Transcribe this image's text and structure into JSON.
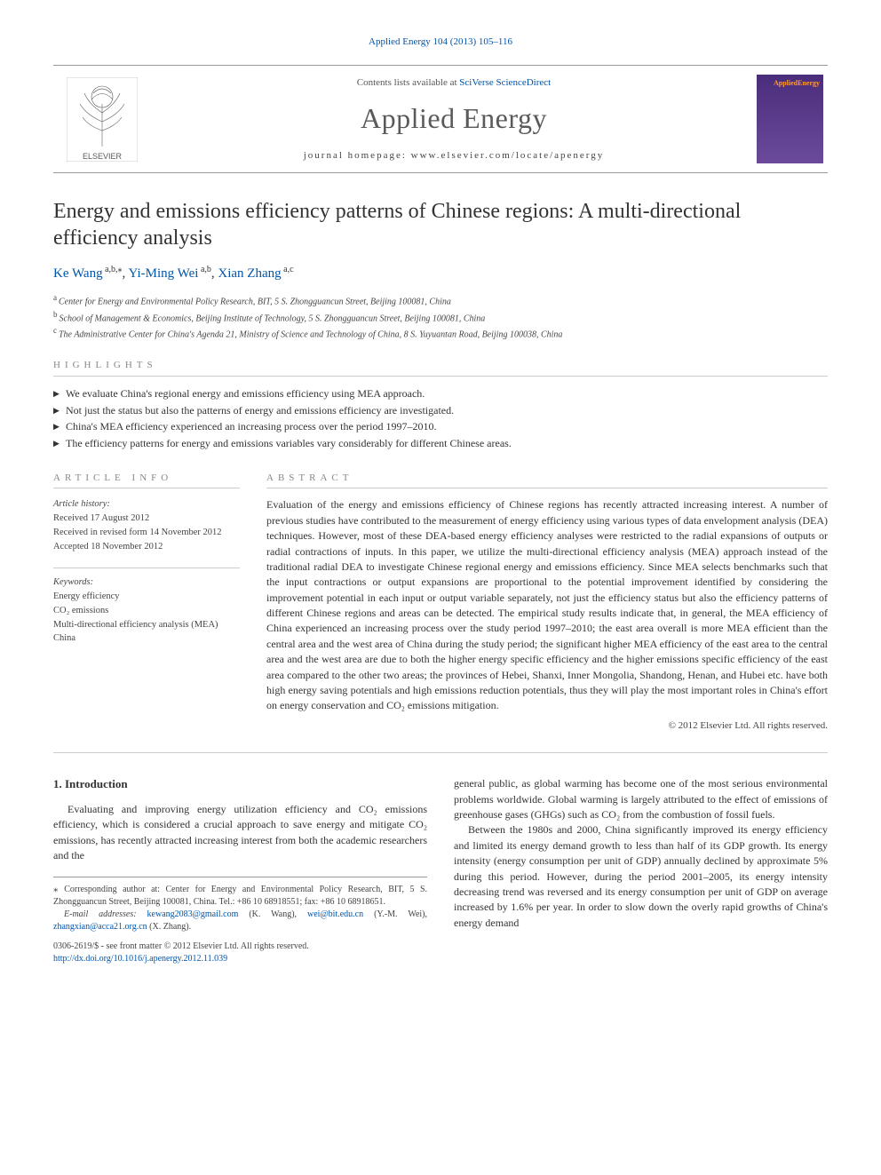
{
  "citation": {
    "journal_link": "Applied Energy 104 (2013) 105–116"
  },
  "masthead": {
    "contents_prefix": "Contents lists available at ",
    "contents_link": "SciVerse ScienceDirect",
    "journal": "Applied Energy",
    "homepage_label": "journal homepage: ",
    "homepage_url": "www.elsevier.com/locate/apenergy",
    "publisher_word": "ELSEVIER",
    "cover_title": "AppliedEnergy"
  },
  "title": "Energy and emissions efficiency patterns of Chinese regions: A multi-directional efficiency analysis",
  "authors": [
    {
      "name": "Ke Wang",
      "aff": "a,b,",
      "corr": "*"
    },
    {
      "name": "Yi-Ming Wei",
      "aff": "a,b",
      "corr": ""
    },
    {
      "name": "Xian Zhang",
      "aff": "a,c",
      "corr": ""
    }
  ],
  "affiliations": [
    {
      "key": "a",
      "text": "Center for Energy and Environmental Policy Research, BIT, 5 S. Zhongguancun Street, Beijing 100081, China"
    },
    {
      "key": "b",
      "text": "School of Management & Economics, Beijing Institute of Technology, 5 S. Zhongguancun Street, Beijing 100081, China"
    },
    {
      "key": "c",
      "text": "The Administrative Center for China's Agenda 21, Ministry of Science and Technology of China, 8 S. Yuyuantan Road, Beijing 100038, China"
    }
  ],
  "highlights": {
    "label": "HIGHLIGHTS",
    "items": [
      "We evaluate China's regional energy and emissions efficiency using MEA approach.",
      "Not just the status but also the patterns of energy and emissions efficiency are investigated.",
      "China's MEA efficiency experienced an increasing process over the period 1997–2010.",
      "The efficiency patterns for energy and emissions variables vary considerably for different Chinese areas."
    ]
  },
  "article_info": {
    "label": "ARTICLE INFO",
    "history_hdr": "Article history:",
    "received": "Received 17 August 2012",
    "revised": "Received in revised form 14 November 2012",
    "accepted": "Accepted 18 November 2012",
    "keywords_hdr": "Keywords:",
    "keywords": [
      "Energy efficiency",
      "CO₂ emissions",
      "Multi-directional efficiency analysis (MEA)",
      "China"
    ]
  },
  "abstract": {
    "label": "ABSTRACT",
    "text": "Evaluation of the energy and emissions efficiency of Chinese regions has recently attracted increasing interest. A number of previous studies have contributed to the measurement of energy efficiency using various types of data envelopment analysis (DEA) techniques. However, most of these DEA-based energy efficiency analyses were restricted to the radial expansions of outputs or radial contractions of inputs. In this paper, we utilize the multi-directional efficiency analysis (MEA) approach instead of the traditional radial DEA to investigate Chinese regional energy and emissions efficiency. Since MEA selects benchmarks such that the input contractions or output expansions are proportional to the potential improvement identified by considering the improvement potential in each input or output variable separately, not just the efficiency status but also the efficiency patterns of different Chinese regions and areas can be detected. The empirical study results indicate that, in general, the MEA efficiency of China experienced an increasing process over the study period 1997–2010; the east area overall is more MEA efficient than the central area and the west area of China during the study period; the significant higher MEA efficiency of the east area to the central area and the west area are due to both the higher energy specific efficiency and the higher emissions specific efficiency of the east area compared to the other two areas; the provinces of Hebei, Shanxi, Inner Mongolia, Shandong, Henan, and Hubei etc. have both high energy saving potentials and high emissions reduction potentials, thus they will play the most important roles in China's effort on energy conservation and CO₂ emissions mitigation.",
    "copyright": "© 2012 Elsevier Ltd. All rights reserved."
  },
  "body": {
    "heading_num": "1.",
    "heading": "Introduction",
    "p1": "Evaluating and improving energy utilization efficiency and CO₂ emissions efficiency, which is considered a crucial approach to save energy and mitigate CO₂ emissions, has recently attracted increasing interest from both the academic researchers and the",
    "p2": "general public, as global warming has become one of the most serious environmental problems worldwide. Global warming is largely attributed to the effect of emissions of greenhouse gases (GHGs) such as CO₂ from the combustion of fossil fuels.",
    "p3": "Between the 1980s and 2000, China significantly improved its energy efficiency and limited its energy demand growth to less than half of its GDP growth. Its energy intensity (energy consumption per unit of GDP) annually declined by approximate 5% during this period. However, during the period 2001–2005, its energy intensity decreasing trend was reversed and its energy consumption per unit of GDP on average increased by 1.6% per year. In order to slow down the overly rapid growths of China's energy demand"
  },
  "footnotes": {
    "corr": "Corresponding author at: Center for Energy and Environmental Policy Research, BIT, 5 S. Zhongguancun Street, Beijing 100081, China. Tel.: +86 10 68918551; fax: +86 10 68918651.",
    "emails_label": "E-mail addresses:",
    "emails": [
      {
        "addr": "kewang2083@gmail.com",
        "who": "(K. Wang)"
      },
      {
        "addr": "wei@bit.edu.cn",
        "who": "(Y.-M. Wei)"
      },
      {
        "addr": "zhangxian@acca21.org.cn",
        "who": "(X. Zhang)"
      }
    ]
  },
  "doi": {
    "issn_line": "0306-2619/$ - see front matter © 2012 Elsevier Ltd. All rights reserved.",
    "url": "http://dx.doi.org/10.1016/j.apenergy.2012.11.039"
  },
  "colors": {
    "link": "#0055aa",
    "rule": "#cccccc",
    "text": "#333333",
    "muted": "#888888"
  }
}
